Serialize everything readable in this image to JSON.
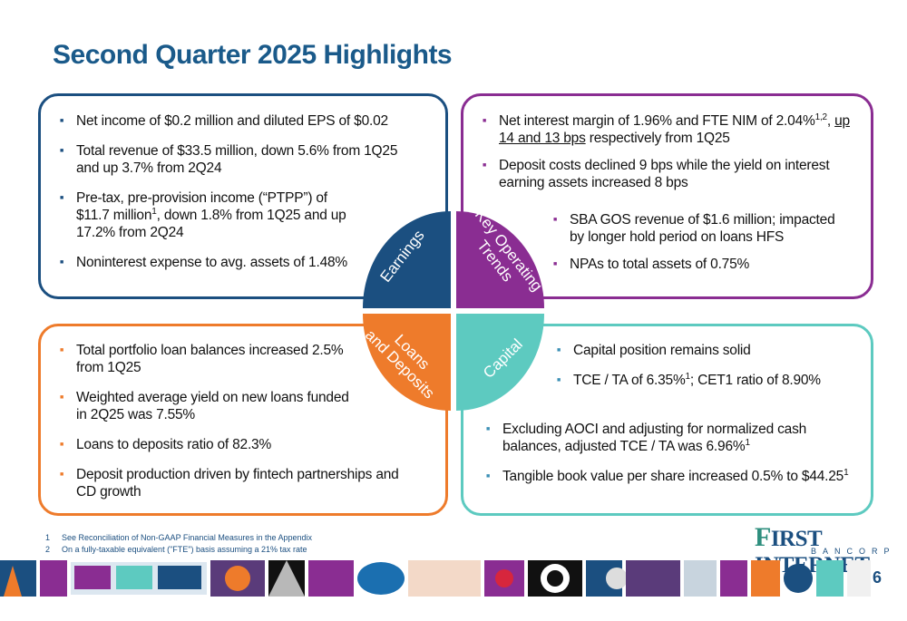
{
  "slide": {
    "title": "Second Quarter 2025 Highlights",
    "page_number": "6"
  },
  "quadrants": {
    "earnings": "Earnings",
    "key_operating_trends": [
      "Key Operating",
      "Trends"
    ],
    "loans_and_deposits": [
      "Loans",
      "and Deposits"
    ],
    "capital": "Capital"
  },
  "earnings": {
    "b1": "Net income of $0.2 million and diluted EPS of $0.02",
    "b2_l1": "Total revenue of $33.5 million, down 5.6% from 1Q25",
    "b2_l2": "and up 3.7% from 2Q24",
    "b3_l1": "Pre-tax, pre-provision income (“PTPP”) of",
    "b3_l2a": "$11.7 million",
    "b3_sup": "1",
    "b3_l2b": ", down 1.8% from 1Q25 and up",
    "b3_l3": "17.2% from 2Q24",
    "b4": "Noninterest expense to avg. assets of 1.48%"
  },
  "key_operating_trends": {
    "b1_a": "Net interest margin of 1.96% and FTE NIM of 2.04%",
    "b1_sup": "1,2",
    "b1_b": ", ",
    "b1_u1": "up",
    "b1_u2": "14 and 13 bps",
    "b1_c": " respectively from 1Q25",
    "b2_l1": "Deposit costs declined 9 bps while the yield on interest",
    "b2_l2": "earning assets increased 8 bps",
    "b3_l1": "SBA GOS revenue of $1.6 million; impacted",
    "b3_l2": "by longer hold period on loans HFS",
    "b4": "NPAs to total assets of 0.75%"
  },
  "loans_and_deposits": {
    "b1_l1": "Total portfolio loan balances increased 2.5%",
    "b1_l2": "from 1Q25",
    "b2_l1": "Weighted average yield on new loans funded",
    "b2_l2": "in 2Q25 was 7.55%",
    "b3": "Loans to deposits ratio of 82.3%",
    "b4_l1": "Deposit production driven by fintech partnerships and",
    "b4_l2": "CD growth"
  },
  "capital": {
    "b1": "Capital position remains solid",
    "b2_a": "TCE / TA of 6.35%",
    "b2_sup": "1",
    "b2_b": "; CET1 ratio of 8.90%",
    "b3_l1": "Excluding AOCI and adjusting for normalized cash",
    "b3_l2": "balances, adjusted TCE / TA was 6.96%",
    "b3_sup": "1",
    "b4": "Tangible book value per share increased 0.5% to $44.25",
    "b4_sup": "1"
  },
  "footnotes": [
    {
      "num": "1",
      "text": "See Reconciliation of Non-GAAP Financial Measures in the Appendix"
    },
    {
      "num": "2",
      "text": "On a fully-taxable equivalent (\"FTE\") basis assuming a 21% tax rate"
    }
  ],
  "logo": {
    "first_letter": "F",
    "name_rest": "IRST INTERNET",
    "sub": "BANCORP"
  },
  "colors": {
    "navy": "#1b4f80",
    "purple": "#8a2d92",
    "orange": "#ee7b2b",
    "teal": "#5dcac0"
  }
}
